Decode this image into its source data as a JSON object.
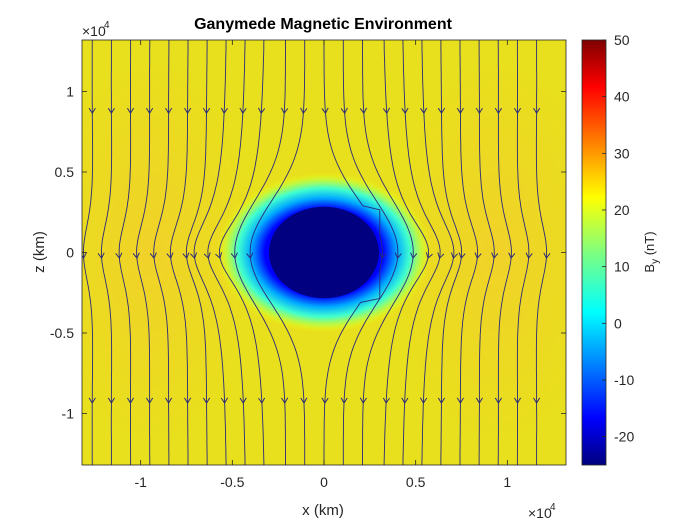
{
  "chart_data": {
    "type": "heatmap",
    "title": "Ganymede Magnetic Environment",
    "xlabel": "x (km)",
    "ylabel": "z (km)",
    "x_exponent_label": "×10",
    "y_exponent_label": "×10",
    "exponent_power": "4",
    "xlim": [
      -13200,
      13200
    ],
    "ylim": [
      -13200,
      13200
    ],
    "x_ticks": [
      {
        "value": -10000,
        "label": "-1"
      },
      {
        "value": -5000,
        "label": "-0.5"
      },
      {
        "value": 0,
        "label": "0"
      },
      {
        "value": 5000,
        "label": "0.5"
      },
      {
        "value": 10000,
        "label": "1"
      }
    ],
    "y_ticks": [
      {
        "value": 10000,
        "label": "1"
      },
      {
        "value": 5000,
        "label": "0.5"
      },
      {
        "value": 0,
        "label": "0"
      },
      {
        "value": -5000,
        "label": "-0.5"
      },
      {
        "value": -10000,
        "label": "-1"
      }
    ],
    "colorbar": {
      "label_main": "B",
      "label_sub": "y",
      "label_unit": " (nT)",
      "colormap": "jet",
      "clim": [
        -25,
        50
      ],
      "ticks": [
        {
          "value": 50,
          "label": "50"
        },
        {
          "value": 40,
          "label": "40"
        },
        {
          "value": 30,
          "label": "30"
        },
        {
          "value": 20,
          "label": "20"
        },
        {
          "value": 10,
          "label": "10"
        },
        {
          "value": 0,
          "label": "0"
        },
        {
          "value": -10,
          "label": "-10"
        },
        {
          "value": -20,
          "label": "-20"
        }
      ]
    },
    "field": {
      "background_By": 23,
      "moon_center": [
        0,
        0
      ],
      "moon_radius": 2634,
      "moon_By": -25
    },
    "streamline_color": "#2a2a7a",
    "arrow_direction": "down",
    "grid": false
  }
}
